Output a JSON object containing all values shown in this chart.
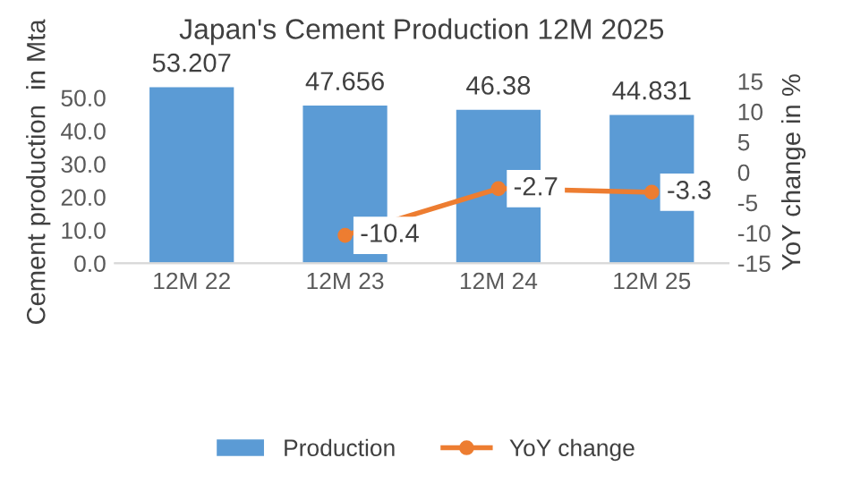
{
  "chart_data": {
    "type": "bar",
    "title": "Japan's Cement Production 12M 2025",
    "categories": [
      "12M 22",
      "12M 23",
      "12M 24",
      "12M 25"
    ],
    "series": [
      {
        "name": "Production",
        "color": "#5b9bd5",
        "values": [
          53.207,
          47.656,
          46.38,
          44.831
        ],
        "value_labels": [
          "53.207",
          "47.656",
          "46.38",
          "44.831"
        ]
      },
      {
        "name": "YoY change",
        "type": "line",
        "axis": "y2",
        "color": "#ed7d31",
        "values": [
          null,
          -10.4,
          -2.7,
          -3.3
        ],
        "value_labels": [
          null,
          "-10.4",
          "-2.7",
          "-3.3"
        ]
      }
    ],
    "ylabel": "Cement production  in Mta",
    "y2label": "YoY change in %",
    "ylim": [
      0,
      55
    ],
    "yticks": [
      {
        "value": 0,
        "label": "0.0"
      },
      {
        "value": 10,
        "label": "10.0"
      },
      {
        "value": 20,
        "label": "20.0"
      },
      {
        "value": 30,
        "label": "30.0"
      },
      {
        "value": 40,
        "label": "40.0"
      },
      {
        "value": 50,
        "label": "50.0"
      }
    ],
    "y2lim": [
      -15,
      15
    ],
    "y2ticks": [
      -15,
      -10,
      -5,
      0,
      5,
      10,
      15
    ],
    "marker": "circle",
    "line_style": "solid",
    "legend": "bottom",
    "grid": false
  }
}
